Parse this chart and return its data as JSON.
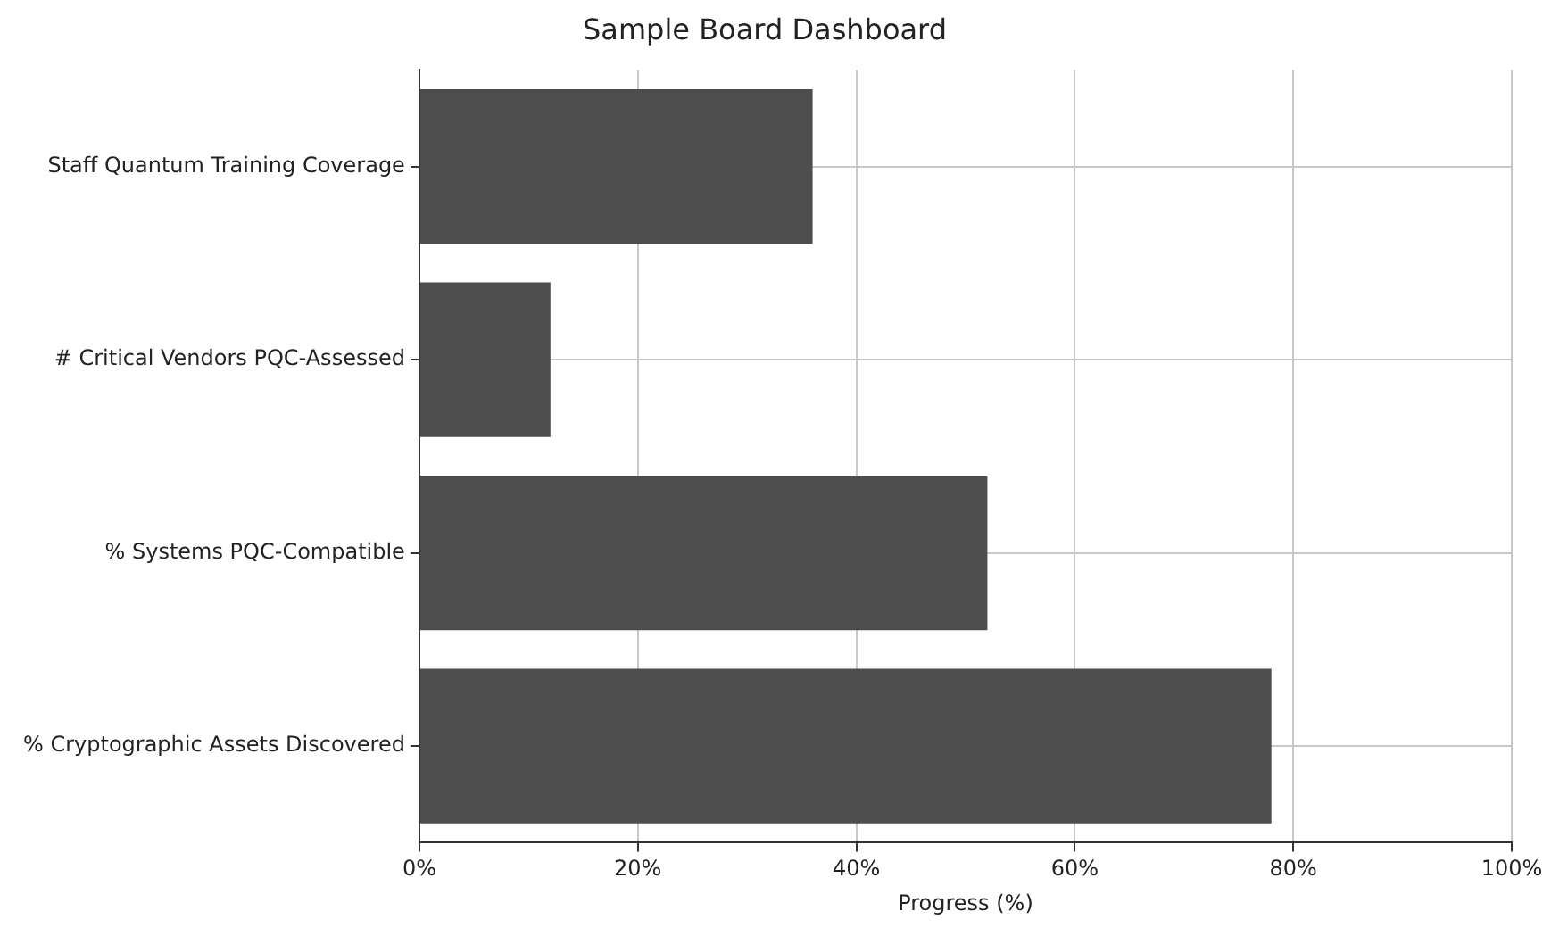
{
  "chart_data": {
    "type": "bar",
    "orientation": "horizontal",
    "title": "Sample Board Dashboard",
    "xlabel": "Progress (%)",
    "categories": [
      "Staff Quantum Training Coverage",
      "# Critical Vendors PQC-Assessed",
      "% Systems PQC-Compatible",
      "% Cryptographic Assets Discovered"
    ],
    "values": [
      36,
      12,
      52,
      78
    ],
    "color": "#4d4d4d",
    "xlim": [
      0,
      100
    ],
    "xticks": [
      {
        "value": 0,
        "label": "0%"
      },
      {
        "value": 20,
        "label": "20%"
      },
      {
        "value": 40,
        "label": "40%"
      },
      {
        "value": 60,
        "label": "60%"
      },
      {
        "value": 80,
        "label": "80%"
      },
      {
        "value": 100,
        "label": "100%"
      }
    ],
    "grid": true
  }
}
